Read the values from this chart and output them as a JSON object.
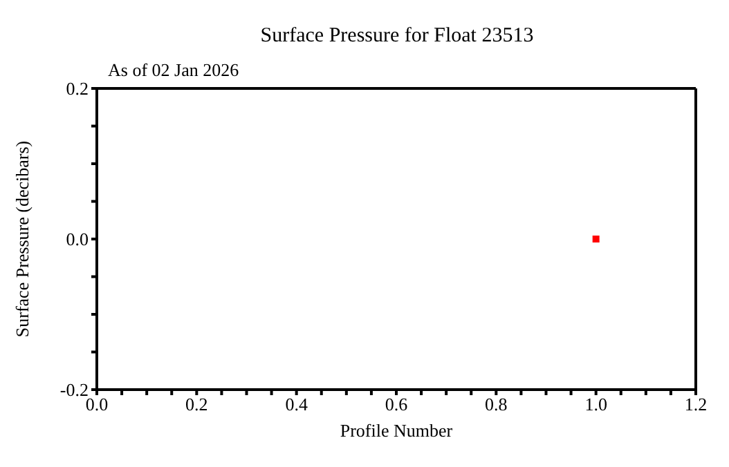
{
  "chart_data": {
    "type": "scatter",
    "title": "Surface Pressure for Float 23513",
    "subtitle": "As of 02 Jan 2026",
    "xlabel": "Profile Number",
    "ylabel": "Surface Pressure (decibars)",
    "x": [
      1.0
    ],
    "series": [
      {
        "color": "#ff0000",
        "values": [
          0.0
        ]
      }
    ],
    "marker": "square",
    "xlim": [
      0,
      1.2
    ],
    "xticks": [
      {
        "value": 0,
        "label": "0.0"
      },
      {
        "value": 0.05,
        "label": null
      },
      {
        "value": 0.1,
        "label": null
      },
      {
        "value": 0.15,
        "label": null
      },
      0.2,
      {
        "value": 0.25,
        "label": null
      },
      {
        "value": 0.3,
        "label": null
      },
      {
        "value": 0.35,
        "label": null
      },
      0.4,
      {
        "value": 0.45,
        "label": null
      },
      {
        "value": 0.5,
        "label": null
      },
      {
        "value": 0.55,
        "label": null
      },
      0.6,
      {
        "value": 0.65,
        "label": null
      },
      {
        "value": 0.7,
        "label": null
      },
      {
        "value": 0.75,
        "label": null
      },
      0.8,
      {
        "value": 0.85,
        "label": null
      },
      {
        "value": 0.9,
        "label": null
      },
      {
        "value": 0.95,
        "label": null
      },
      {
        "value": 1,
        "label": "1.0"
      },
      {
        "value": 1.05,
        "label": null
      },
      {
        "value": 1.1,
        "label": null
      },
      {
        "value": 1.15,
        "label": null
      },
      1.2
    ],
    "ylim": [
      -0.2,
      0.2
    ],
    "yticks": [
      -0.2,
      {
        "value": -0.15,
        "label": null
      },
      {
        "value": -0.1,
        "label": null
      },
      {
        "value": -0.05,
        "label": null
      },
      {
        "value": 0,
        "label": "0.0"
      },
      {
        "value": 0.05,
        "label": null
      },
      {
        "value": 0.1,
        "label": null
      },
      {
        "value": 0.15,
        "label": null
      },
      0.2
    ]
  }
}
